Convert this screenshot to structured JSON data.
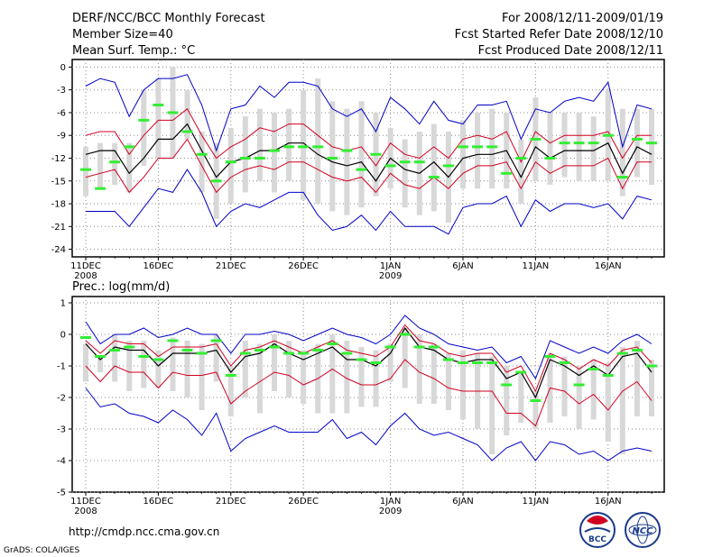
{
  "header": {
    "title": "DERF/NCC/BCC Monthly Forecast",
    "member": "Member Size=40",
    "variable": "Mean Surf. Temp.: °C",
    "period": "For 2008/12/11-2009/01/19",
    "started": "Fcst Started Refer Date 2008/12/10",
    "produced": "Fcst Produced Date 2008/12/11"
  },
  "footer": {
    "url": "http://cmdp.ncc.cma.gov.cn",
    "grads": "GrADS: COLA/IGES"
  },
  "logos": {
    "bcc": "BCC",
    "ncc": "NCC"
  },
  "colors": {
    "box": "#d8d8d8",
    "median": "#000000",
    "bound": "#d00020",
    "extreme": "#0000c8",
    "obs": "#33ee33"
  },
  "chart_data": [
    {
      "type": "line",
      "title": "Mean Surf. Temp.: °C",
      "ylim": [
        -25,
        1
      ],
      "yticks": [
        0,
        -3,
        -6,
        -9,
        -12,
        -15,
        -18,
        -21,
        -24
      ],
      "xticks": [
        {
          "day": 0,
          "label": "11DEC",
          "sub": "2008"
        },
        {
          "day": 5,
          "label": "16DEC",
          "sub": ""
        },
        {
          "day": 10,
          "label": "21DEC",
          "sub": ""
        },
        {
          "day": 15,
          "label": "26DEC",
          "sub": ""
        },
        {
          "day": 21,
          "label": "1JAN",
          "sub": "2009"
        },
        {
          "day": 26,
          "label": "6JAN",
          "sub": ""
        },
        {
          "day": 31,
          "label": "11JAN",
          "sub": ""
        },
        {
          "day": 36,
          "label": "16JAN",
          "sub": ""
        }
      ],
      "days": 40,
      "series": {
        "median": [
          -11.5,
          -11.0,
          -11.0,
          -14.0,
          -12.0,
          -9.5,
          -9.5,
          -7.5,
          -11.0,
          -14.5,
          -12.5,
          -12.0,
          -11.0,
          -11.0,
          -10.0,
          -10.0,
          -11.5,
          -12.5,
          -13.0,
          -12.5,
          -15.0,
          -12.0,
          -13.5,
          -14.0,
          -12.5,
          -14.5,
          -12.0,
          -11.5,
          -11.5,
          -11.0,
          -14.5,
          -10.5,
          -12.0,
          -11.0,
          -11.0,
          -11.0,
          -10.0,
          -14.0,
          -10.5,
          -11.5
        ],
        "upper": [
          -9.0,
          -8.5,
          -8.5,
          -11.5,
          -9.0,
          -7.0,
          -7.0,
          -5.5,
          -9.0,
          -12.0,
          -10.5,
          -9.5,
          -8.0,
          -8.5,
          -7.5,
          -7.5,
          -9.0,
          -10.5,
          -11.0,
          -10.5,
          -13.0,
          -10.0,
          -11.5,
          -12.0,
          -10.5,
          -12.0,
          -9.5,
          -9.0,
          -9.5,
          -8.5,
          -12.5,
          -8.5,
          -10.0,
          -9.0,
          -9.0,
          -9.0,
          -8.5,
          -12.0,
          -9.0,
          -9.0
        ],
        "lower": [
          -14.5,
          -14.0,
          -13.5,
          -16.5,
          -14.5,
          -12.0,
          -12.0,
          -9.5,
          -13.0,
          -16.5,
          -14.5,
          -13.5,
          -13.0,
          -13.5,
          -12.5,
          -12.5,
          -13.5,
          -14.5,
          -15.0,
          -14.5,
          -16.5,
          -14.0,
          -15.5,
          -16.0,
          -14.5,
          -16.0,
          -14.0,
          -13.0,
          -13.0,
          -12.5,
          -16.0,
          -12.5,
          -14.0,
          -13.0,
          -13.0,
          -13.0,
          -12.0,
          -16.0,
          -12.5,
          -12.5
        ],
        "max": [
          -2.5,
          -1.5,
          -2.0,
          -6.5,
          -3.0,
          -1.5,
          -1.5,
          -1.0,
          -5.0,
          -11.0,
          -5.5,
          -5.0,
          -2.5,
          -4.0,
          -2.0,
          -2.0,
          -2.5,
          -5.5,
          -6.5,
          -5.5,
          -8.5,
          -4.0,
          -5.5,
          -7.5,
          -4.5,
          -7.0,
          -7.5,
          -5.0,
          -5.0,
          -4.5,
          -9.5,
          -5.5,
          -6.0,
          -4.5,
          -4.0,
          -4.5,
          -2.0,
          -10.5,
          -5.0,
          -5.5
        ],
        "min": [
          -19.0,
          -19.0,
          -19.0,
          -21.0,
          -18.5,
          -16.0,
          -16.5,
          -13.5,
          -16.5,
          -21.0,
          -19.0,
          -18.0,
          -18.5,
          -17.5,
          -16.5,
          -16.5,
          -19.5,
          -21.5,
          -21.0,
          -19.5,
          -21.5,
          -19.0,
          -21.0,
          -21.0,
          -21.0,
          -22.0,
          -18.5,
          -18.0,
          -18.0,
          -17.0,
          -21.0,
          -17.5,
          -19.0,
          -18.0,
          -18.0,
          -18.5,
          -18.0,
          -20.0,
          -17.0,
          -17.5
        ],
        "box_top": [
          -10.5,
          -10.0,
          -10.0,
          -10.0,
          -3.0,
          -1.5,
          0.0,
          -3.0,
          -8.5,
          -10.0,
          -8.0,
          -6.5,
          -5.5,
          -6.0,
          -5.5,
          -3.0,
          -1.5,
          -4.5,
          -5.5,
          -4.5,
          -6.0,
          -8.0,
          -9.5,
          -8.5,
          -7.5,
          -8.5,
          -7.0,
          -6.0,
          -5.5,
          -6.0,
          -9.5,
          -4.0,
          -6.0,
          -6.0,
          -6.0,
          -6.5,
          -3.0,
          -5.5,
          -5.5,
          -5.5
        ],
        "box_bot": [
          -17.0,
          -16.0,
          -15.5,
          -16.5,
          -13.0,
          -12.0,
          -12.0,
          -9.5,
          -16.5,
          -20.0,
          -18.0,
          -16.5,
          -15.0,
          -16.5,
          -15.0,
          -17.5,
          -18.0,
          -19.0,
          -19.5,
          -18.5,
          -17.0,
          -16.0,
          -18.5,
          -19.5,
          -19.0,
          -20.5,
          -16.0,
          -16.0,
          -16.0,
          -16.0,
          -18.0,
          -15.0,
          -15.5,
          -14.5,
          -15.0,
          -15.0,
          -15.0,
          -17.0,
          -14.5,
          -15.5
        ],
        "obs": [
          -13.5,
          -16.0,
          -12.5,
          -10.5,
          -7.0,
          -5.0,
          -6.0,
          -8.5,
          -11.5,
          -15.0,
          -12.5,
          -12.0,
          -12.0,
          -11.0,
          -10.5,
          -10.5,
          -10.5,
          -12.0,
          -11.0,
          -13.5,
          -11.5,
          -13.0,
          -12.5,
          -12.5,
          -14.5,
          -13.0,
          -10.5,
          -10.5,
          -10.5,
          -14.0,
          -12.0,
          -9.5,
          -12.0,
          -10.0,
          -10.0,
          -10.0,
          -9.0,
          -14.5,
          -9.5,
          -10.0
        ]
      }
    },
    {
      "type": "line",
      "title": "Prec.: log(mm/d)",
      "ylim": [
        -5,
        1.2
      ],
      "yticks": [
        1,
        0,
        -1,
        -2,
        -3,
        -4,
        -5
      ],
      "xticks": [
        {
          "day": 0,
          "label": "11DEC",
          "sub": "2008"
        },
        {
          "day": 5,
          "label": "16DEC",
          "sub": ""
        },
        {
          "day": 10,
          "label": "21DEC",
          "sub": ""
        },
        {
          "day": 15,
          "label": "26DEC",
          "sub": ""
        },
        {
          "day": 21,
          "label": "1JAN",
          "sub": "2009"
        },
        {
          "day": 26,
          "label": "6JAN",
          "sub": ""
        },
        {
          "day": 31,
          "label": "11JAN",
          "sub": ""
        },
        {
          "day": 36,
          "label": "16JAN",
          "sub": ""
        }
      ],
      "days": 40,
      "series": {
        "median": [
          -0.3,
          -0.8,
          -0.4,
          -0.5,
          -0.5,
          -1.0,
          -0.6,
          -0.6,
          -0.6,
          -0.5,
          -1.2,
          -0.7,
          -0.6,
          -0.3,
          -0.6,
          -0.8,
          -0.6,
          -0.4,
          -0.8,
          -0.8,
          -1.0,
          -0.6,
          0.2,
          -0.4,
          -0.5,
          -0.8,
          -0.9,
          -0.8,
          -0.8,
          -1.4,
          -1.2,
          -2.0,
          -0.8,
          -1.0,
          -1.3,
          -1.0,
          -1.3,
          -0.7,
          -0.6,
          -1.2
        ],
        "upper": [
          -0.2,
          -0.6,
          -0.2,
          -0.3,
          -0.3,
          -0.7,
          -0.4,
          -0.4,
          -0.4,
          -0.3,
          -1.0,
          -0.5,
          -0.4,
          -0.2,
          -0.4,
          -0.6,
          -0.4,
          -0.2,
          -0.5,
          -0.6,
          -0.7,
          -0.4,
          0.3,
          -0.2,
          -0.3,
          -0.6,
          -0.7,
          -0.6,
          -0.6,
          -1.2,
          -1.0,
          -1.8,
          -0.6,
          -0.8,
          -1.1,
          -0.8,
          -1.0,
          -0.5,
          -0.4,
          -0.9
        ],
        "lower": [
          -1.0,
          -1.5,
          -1.0,
          -1.2,
          -1.2,
          -1.7,
          -1.2,
          -1.3,
          -1.3,
          -1.2,
          -2.2,
          -1.8,
          -1.5,
          -1.2,
          -1.3,
          -1.6,
          -1.4,
          -1.1,
          -1.4,
          -1.6,
          -1.6,
          -1.4,
          -0.8,
          -1.2,
          -1.4,
          -1.7,
          -1.8,
          -1.8,
          -1.8,
          -2.5,
          -2.5,
          -2.9,
          -1.7,
          -1.8,
          -2.2,
          -1.9,
          -2.4,
          -1.8,
          -1.5,
          -2.1
        ],
        "max": [
          0.4,
          -0.3,
          0.0,
          0.0,
          0.2,
          -0.1,
          0.0,
          0.2,
          0.0,
          0.0,
          -0.6,
          0.0,
          0.0,
          0.1,
          0.0,
          -0.2,
          0.0,
          0.2,
          0.0,
          -0.1,
          -0.3,
          0.0,
          0.6,
          0.2,
          0.0,
          -0.3,
          -0.4,
          -0.5,
          -0.4,
          -0.9,
          -0.7,
          -1.4,
          -0.2,
          -0.4,
          -0.6,
          -0.4,
          -0.6,
          -0.2,
          0.0,
          -0.3
        ],
        "min": [
          -1.7,
          -2.3,
          -2.2,
          -2.5,
          -2.6,
          -2.8,
          -2.4,
          -2.7,
          -3.2,
          -2.5,
          -3.7,
          -3.3,
          -3.1,
          -2.9,
          -3.1,
          -3.1,
          -3.1,
          -2.7,
          -3.3,
          -3.1,
          -3.5,
          -2.9,
          -2.5,
          -3.0,
          -3.2,
          -3.1,
          -3.3,
          -3.5,
          -4.0,
          -3.6,
          -3.4,
          -4.0,
          -3.4,
          -3.5,
          -3.8,
          -3.7,
          -4.0,
          -3.7,
          -3.6,
          -3.7
        ],
        "box_top": [
          -0.3,
          -0.7,
          0.0,
          -0.2,
          -0.2,
          -0.5,
          -0.1,
          -0.2,
          -0.3,
          0.0,
          -1.0,
          -0.2,
          -0.3,
          0.0,
          -0.2,
          -0.5,
          -0.3,
          0.0,
          -0.2,
          -0.4,
          -0.5,
          -0.3,
          0.2,
          0.0,
          -0.3,
          -0.6,
          -0.5,
          -0.6,
          -0.7,
          -1.0,
          -1.2,
          -1.8,
          -0.6,
          -0.7,
          -1.0,
          -0.8,
          -0.9,
          -0.4,
          -0.2,
          -0.8
        ],
        "box_bot": [
          -1.5,
          -1.2,
          -1.5,
          -1.8,
          -1.7,
          -1.7,
          -1.8,
          -2.0,
          -2.4,
          -1.5,
          -2.6,
          -2.0,
          -2.5,
          -1.8,
          -2.0,
          -2.2,
          -2.5,
          -2.5,
          -2.5,
          -2.3,
          -2.3,
          -1.5,
          -1.7,
          -2.2,
          -2.2,
          -2.4,
          -2.7,
          -3.0,
          -3.8,
          -3.2,
          -2.8,
          -3.0,
          -2.8,
          -2.6,
          -3.0,
          -2.7,
          -3.4,
          -3.8,
          -2.6,
          -2.6
        ],
        "obs": [
          -0.1,
          -0.7,
          -0.5,
          -0.4,
          -0.7,
          -0.8,
          -0.2,
          -0.5,
          -0.6,
          -0.2,
          -1.3,
          -0.6,
          -0.5,
          -0.4,
          -0.6,
          -0.6,
          -0.5,
          -0.3,
          -0.6,
          -0.8,
          -0.9,
          -0.4,
          0.0,
          -0.4,
          -0.4,
          -0.8,
          -0.9,
          -0.9,
          -0.9,
          -1.6,
          -1.2,
          -2.1,
          -0.7,
          -0.9,
          -1.6,
          -1.1,
          -1.3,
          -0.6,
          -0.5,
          -1.0
        ]
      }
    }
  ]
}
